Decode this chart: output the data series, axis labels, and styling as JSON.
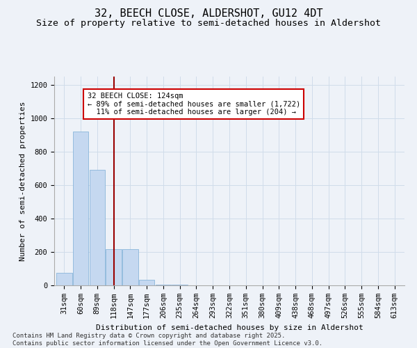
{
  "title": "32, BEECH CLOSE, ALDERSHOT, GU12 4DT",
  "subtitle": "Size of property relative to semi-detached houses in Aldershot",
  "xlabel": "Distribution of semi-detached houses by size in Aldershot",
  "ylabel": "Number of semi-detached properties",
  "bar_categories": [
    "31sqm",
    "60sqm",
    "89sqm",
    "118sqm",
    "147sqm",
    "177sqm",
    "206sqm",
    "235sqm",
    "264sqm",
    "293sqm",
    "322sqm",
    "351sqm",
    "380sqm",
    "409sqm",
    "438sqm",
    "468sqm",
    "497sqm",
    "526sqm",
    "555sqm",
    "584sqm",
    "613sqm"
  ],
  "bar_values": [
    75,
    920,
    690,
    215,
    215,
    35,
    5,
    3,
    2,
    1,
    1,
    0,
    0,
    0,
    0,
    0,
    0,
    0,
    0,
    0,
    0
  ],
  "bar_color": "#c5d8f0",
  "bar_edgecolor": "#7aacd6",
  "grid_color": "#d0dcea",
  "vline_x": 3.0,
  "vline_color": "#990000",
  "annotation_line1": "32 BEECH CLOSE: 124sqm",
  "annotation_line2": "← 89% of semi-detached houses are smaller (1,722)",
  "annotation_line3": "  11% of semi-detached houses are larger (204) →",
  "annotation_box_color": "#ffffff",
  "annotation_border_color": "#cc0000",
  "ylim": [
    0,
    1250
  ],
  "yticks": [
    0,
    200,
    400,
    600,
    800,
    1000,
    1200
  ],
  "background_color": "#eef2f8",
  "footer": "Contains HM Land Registry data © Crown copyright and database right 2025.\nContains public sector information licensed under the Open Government Licence v3.0.",
  "title_fontsize": 11,
  "subtitle_fontsize": 9.5,
  "axis_label_fontsize": 8,
  "tick_fontsize": 7.5,
  "footer_fontsize": 6.5
}
